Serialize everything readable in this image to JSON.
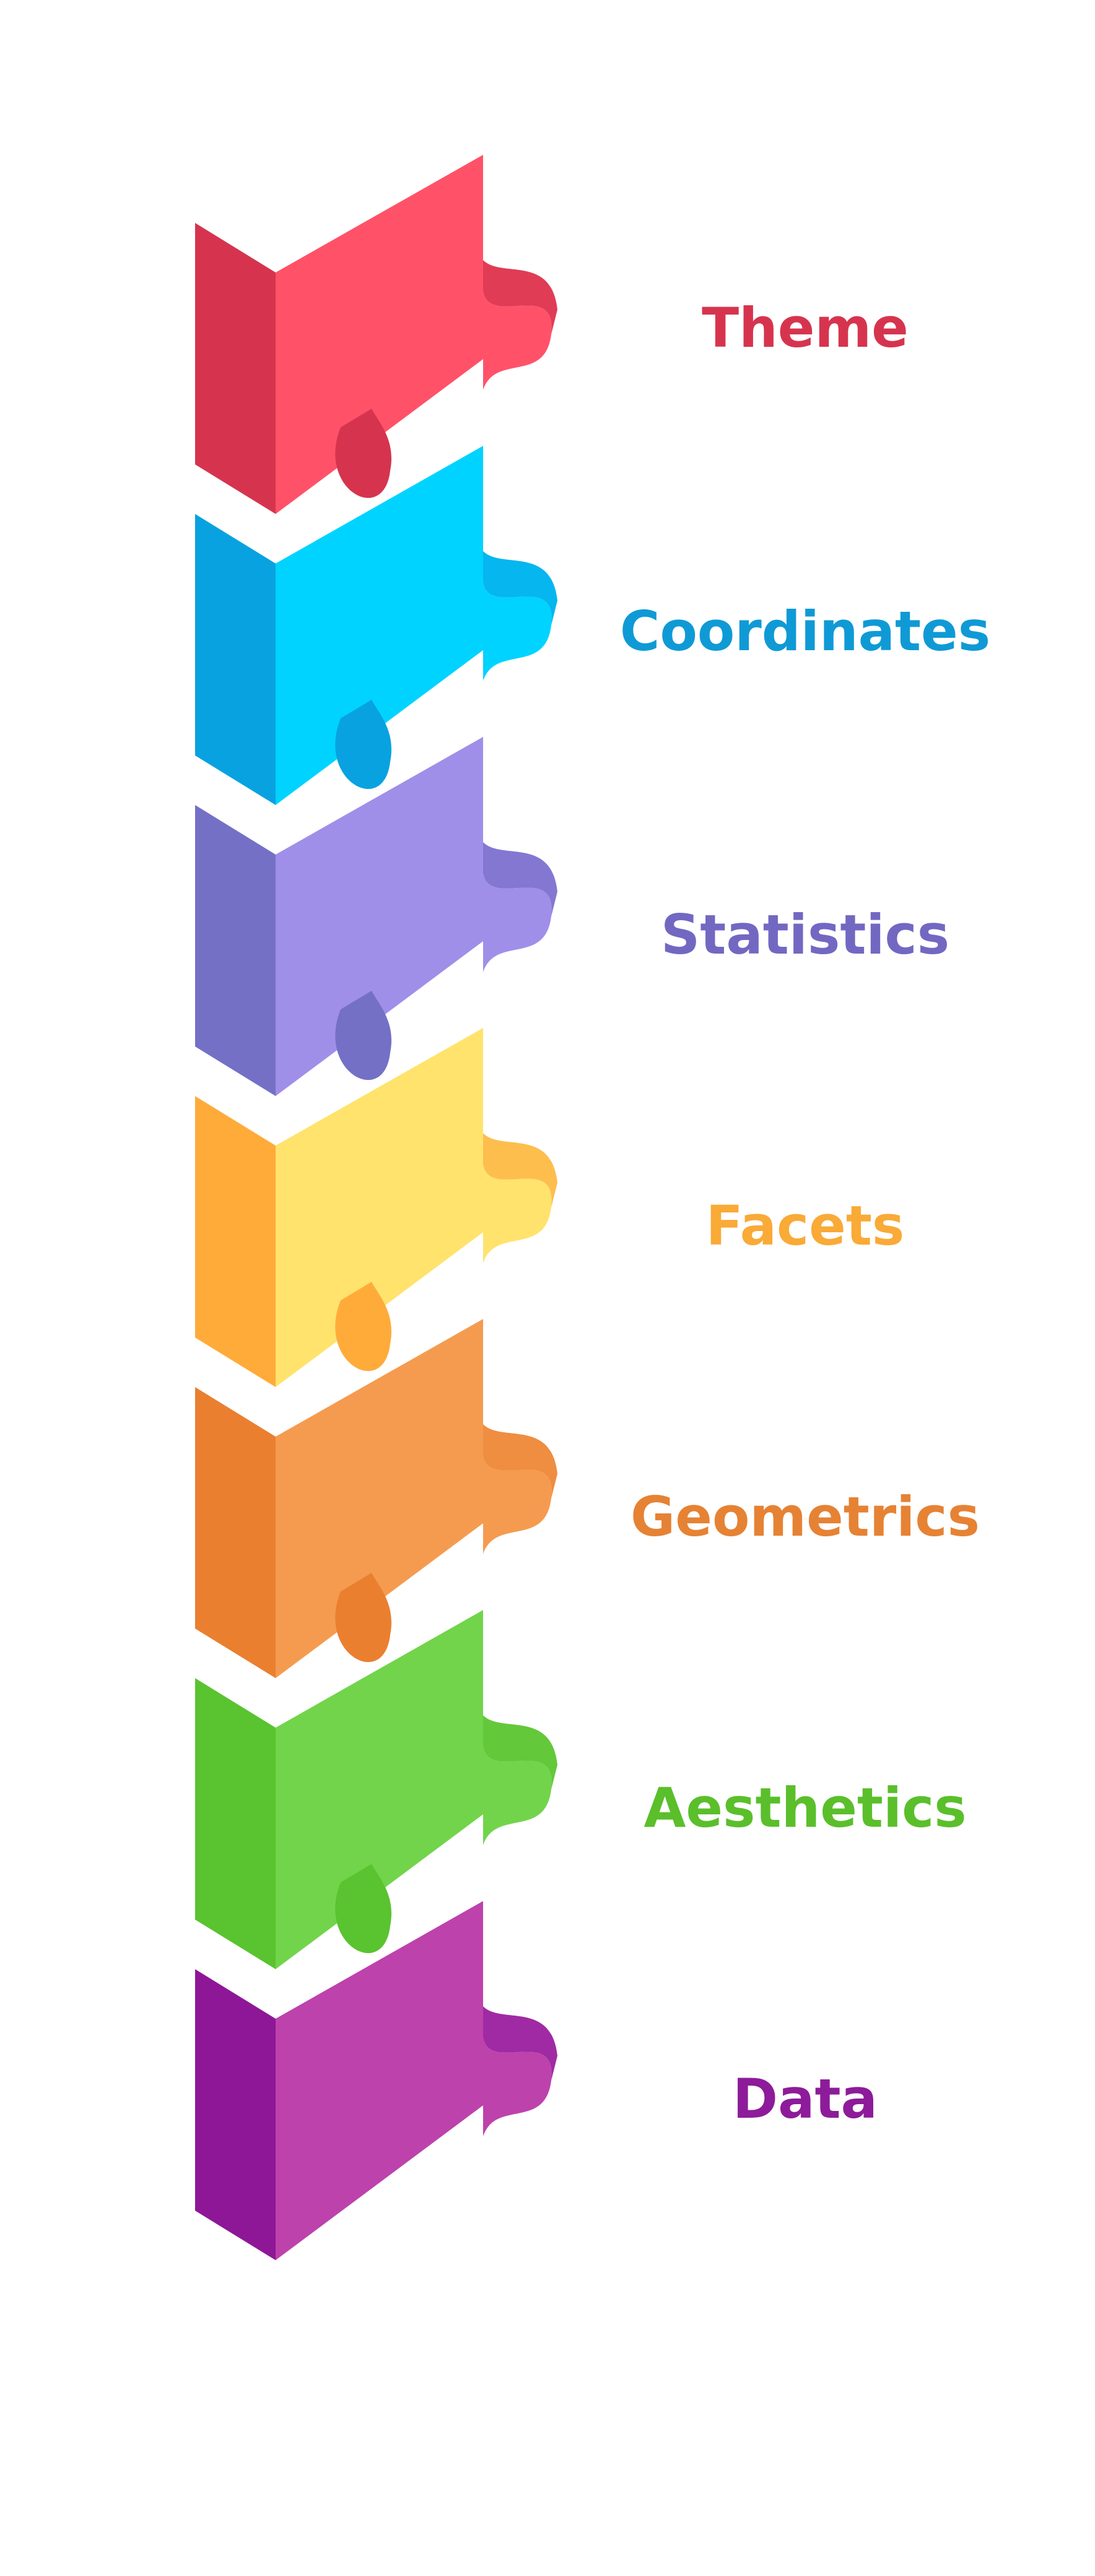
{
  "layers": [
    {
      "label": "Theme",
      "color": "#d6344e",
      "top": "#ff5269",
      "side": "#d6344e",
      "edge": "#e03c56"
    },
    {
      "label": "Coordinates",
      "color": "#0f9ad6",
      "top": "#00d3ff",
      "side": "#08a2e0",
      "edge": "#05b6ef"
    },
    {
      "label": "Statistics",
      "color": "#7268c2",
      "top": "#9f8fe8",
      "side": "#7470c6",
      "edge": "#8477d2"
    },
    {
      "label": "Facets",
      "color": "#f9aa37",
      "top": "#ffe36c",
      "side": "#ffab3a",
      "edge": "#fdbe4e"
    },
    {
      "label": "Geometrics",
      "color": "#e68234",
      "top": "#f59b4f",
      "side": "#ea7f30",
      "edge": "#ef8d40"
    },
    {
      "label": "Aesthetics",
      "color": "#5abf2b",
      "top": "#72d44b",
      "side": "#5ac330",
      "edge": "#63c83a"
    },
    {
      "label": "Data",
      "color": "#8d1b9a",
      "top": "#bd42ac",
      "side": "#8e1797",
      "edge": "#a02aa3"
    }
  ]
}
